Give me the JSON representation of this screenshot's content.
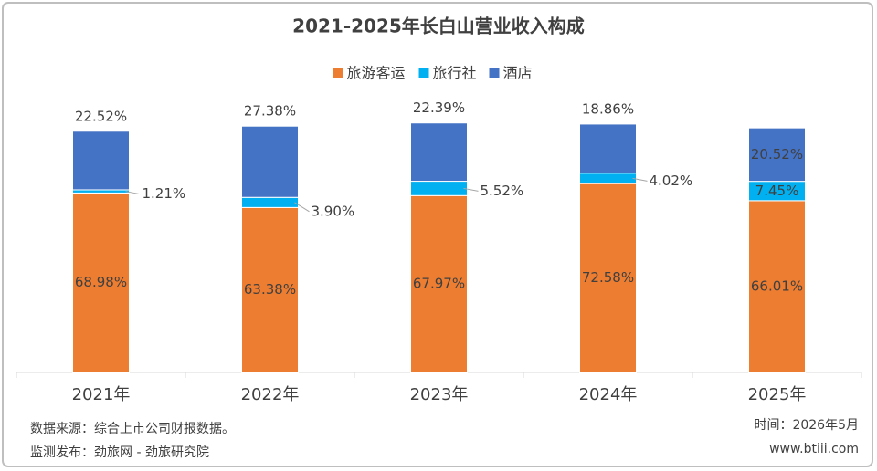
{
  "chart_data": {
    "type": "stacked_bar",
    "title": "2021-2025年长白山营业收入构成",
    "categories": [
      "2021年",
      "2022年",
      "2023年",
      "2024年",
      "2025年"
    ],
    "series": [
      {
        "name": "旅游客运",
        "color": "#ED7D31",
        "values": [
          68.98,
          63.38,
          67.97,
          72.58,
          66.01
        ],
        "value_labels": [
          "68.98%",
          "63.38%",
          "67.97%",
          "72.58%",
          "66.01%"
        ]
      },
      {
        "name": "旅行社",
        "color": "#00B0F0",
        "values": [
          1.21,
          3.9,
          5.52,
          4.02,
          7.45
        ],
        "value_labels": [
          "1.21%",
          "3.90%",
          "5.52%",
          "4.02%",
          "7.45%"
        ]
      },
      {
        "name": "酒店",
        "color": "#4472C4",
        "values": [
          22.52,
          27.38,
          22.39,
          18.86,
          20.52
        ],
        "value_labels": [
          "22.52%",
          "27.38%",
          "22.39%",
          "18.86%",
          "20.52%"
        ]
      }
    ],
    "ylim": [
      0,
      100
    ],
    "legend": "top",
    "source": "数据来源：综合上市公司财报数据。",
    "publisher": "监测发布：劲旅网 - 劲旅研究院",
    "date": "时间：2026年5月",
    "website": "www.btiii.com"
  }
}
